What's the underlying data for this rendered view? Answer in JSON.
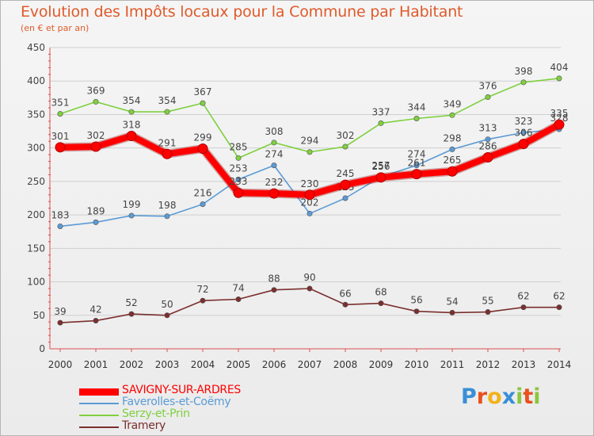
{
  "chart_data": {
    "type": "line",
    "title": "Evolution des Impôts locaux pour la Commune par Habitant",
    "subtitle": "(en € et par an)",
    "xlabel": "",
    "ylabel": "",
    "ylim": [
      0,
      450
    ],
    "yticks": [
      0,
      50,
      100,
      150,
      200,
      250,
      300,
      350,
      400,
      450
    ],
    "categories": [
      "2000",
      "2001",
      "2002",
      "2003",
      "2004",
      "2005",
      "2006",
      "2007",
      "2008",
      "2009",
      "2010",
      "2011",
      "2012",
      "2013",
      "2014"
    ],
    "series": [
      {
        "name": "SAVIGNY-SUR-ARDRES",
        "color": "#ff0000",
        "values": [
          301,
          302,
          318,
          291,
          299,
          233,
          232,
          230,
          245,
          256,
          261,
          265,
          286,
          306,
          335
        ],
        "labels": [
          "301",
          "302",
          "318",
          "291",
          "299",
          "233",
          "232",
          "230",
          "245",
          "256",
          "261",
          "265",
          "286",
          "306",
          "335"
        ]
      },
      {
        "name": "Faverolles-et-Coëmy",
        "color": "#5b9bd5",
        "values": [
          183,
          189,
          199,
          198,
          216,
          253,
          274,
          202,
          225,
          257,
          274,
          298,
          313,
          323,
          328
        ],
        "labels": [
          "183",
          "189",
          "199",
          "198",
          "216",
          "253",
          "274",
          "202",
          "225",
          "257",
          "274",
          "298",
          "313",
          "323",
          "328"
        ]
      },
      {
        "name": "Serzy-et-Prin",
        "color": "#7fd03f",
        "values": [
          351,
          369,
          354,
          354,
          367,
          285,
          308,
          294,
          302,
          337,
          344,
          349,
          376,
          398,
          404
        ],
        "labels": [
          "351",
          "369",
          "354",
          "354",
          "367",
          "285",
          "308",
          "294",
          "302",
          "337",
          "344",
          "349",
          "376",
          "398",
          "404"
        ]
      },
      {
        "name": "Tramery",
        "color": "#7b2e2e",
        "values": [
          39,
          42,
          52,
          50,
          72,
          74,
          88,
          90,
          66,
          68,
          56,
          54,
          55,
          62,
          62
        ],
        "labels": [
          "39",
          "42",
          "52",
          "50",
          "72",
          "74",
          "88",
          "90",
          "66",
          "68",
          "56",
          "54",
          "55",
          "62",
          "62"
        ]
      }
    ]
  },
  "legend": {
    "items": [
      {
        "label": "SAVIGNY-SUR-ARDRES",
        "color": "#ff0000"
      },
      {
        "label": "Faverolles-et-Coëmy",
        "color": "#5b9bd5"
      },
      {
        "label": "Serzy-et-Prin",
        "color": "#7fd03f"
      },
      {
        "label": "Tramery",
        "color": "#7b2e2e"
      }
    ]
  },
  "logo": {
    "text": "Proxiti",
    "letters": [
      "P",
      "r",
      "o",
      "x",
      "i",
      "t",
      "i"
    ],
    "colors": [
      "#3a8fd6",
      "#e8501e",
      "#f2b21b",
      "#3a8fd6",
      "#8cc63f",
      "#e8501e",
      "#8cc63f"
    ]
  }
}
